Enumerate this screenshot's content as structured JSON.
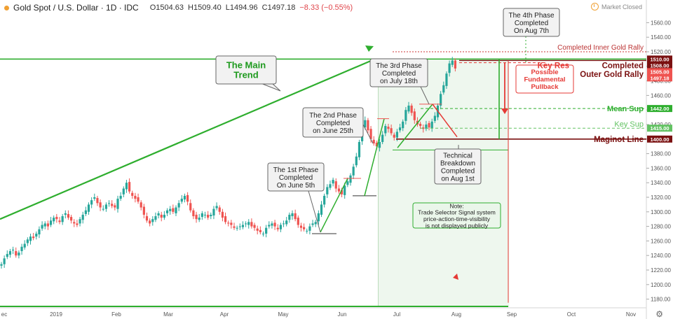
{
  "header": {
    "title": "Gold Spot / U.S. Dollar · 1D · IDC",
    "open": "O1504.63",
    "high": "H1509.40",
    "low": "L1494.96",
    "close": "C1497.18",
    "change": "−8.33 (−0.55%)",
    "market_status": "Market Closed"
  },
  "colors": {
    "up": "#26a69a",
    "down": "#ef5350",
    "trend": "#2eae2e",
    "resistance": "#e53935",
    "maginot": "#7a1010",
    "accent": "#f0a033"
  },
  "chart_data": {
    "type": "candlestick",
    "symbol": "XAUUSD",
    "ylim": [
      1170,
      1570
    ],
    "yticks": [
      1180,
      1200,
      1220,
      1240,
      1260,
      1280,
      1300,
      1320,
      1340,
      1360,
      1380,
      1400,
      1420,
      1440,
      1460,
      1480,
      1500,
      1520,
      1540,
      1560
    ],
    "xtick_labels": [
      "ec",
      "2019",
      "Feb",
      "Mar",
      "Apr",
      "May",
      "Jun",
      "Jul",
      "Aug",
      "Sep",
      "Oct",
      "Nov"
    ],
    "closes_approx": [
      1228,
      1236,
      1242,
      1246,
      1248,
      1240,
      1244,
      1252,
      1256,
      1262,
      1266,
      1264,
      1270,
      1276,
      1282,
      1284,
      1280,
      1288,
      1292,
      1290,
      1286,
      1294,
      1298,
      1292,
      1288,
      1284,
      1282,
      1290,
      1296,
      1302,
      1310,
      1316,
      1320,
      1312,
      1306,
      1304,
      1310,
      1312,
      1308,
      1306,
      1318,
      1322,
      1332,
      1340,
      1328,
      1322,
      1318,
      1314,
      1306,
      1296,
      1288,
      1284,
      1290,
      1294,
      1298,
      1292,
      1296,
      1302,
      1304,
      1300,
      1306,
      1312,
      1318,
      1322,
      1314,
      1302,
      1294,
      1290,
      1292,
      1298,
      1296,
      1292,
      1296,
      1304,
      1308,
      1300,
      1292,
      1286,
      1284,
      1282,
      1278,
      1278,
      1280,
      1282,
      1284,
      1286,
      1280,
      1278,
      1274,
      1272,
      1270,
      1278,
      1282,
      1284,
      1280,
      1276,
      1282,
      1284,
      1288,
      1296,
      1298,
      1290,
      1282,
      1278,
      1276,
      1274,
      1280,
      1284,
      1286,
      1298,
      1310,
      1322,
      1334,
      1338,
      1344,
      1332,
      1328,
      1324,
      1336,
      1342,
      1350,
      1362,
      1376,
      1396,
      1418,
      1426,
      1412,
      1400,
      1394,
      1390,
      1396,
      1406,
      1418,
      1414,
      1408,
      1402,
      1410,
      1416,
      1424,
      1440,
      1446,
      1436,
      1426,
      1420,
      1418,
      1414,
      1420,
      1416,
      1424,
      1432,
      1446,
      1462,
      1474,
      1490,
      1504,
      1508,
      1497
    ],
    "annotations": {
      "main_trend": "The Main\nTrend",
      "phase1": "The 1st Phase\nCompleted\nOn June 5th",
      "phase2": "The 2nd Phase\nCompleted\non June 25th",
      "phase3": "The 3rd Phase\nCompleted\non July 18th",
      "phase4": "The 4th Phase\nCompleted\nOn Aug 7th",
      "tech_breakdown": "Technical\nBreakdown\nCompleted\non Aug 1st",
      "note": "Note:\nTrade Selector Signal system\nprice-action-time-visibility\nis not displayed publicly",
      "pullback": "Possible\nFundamental\nPullback"
    },
    "levels": [
      {
        "name": "Completed Inner Gold Rally",
        "price": 1520,
        "color": "#cc3333"
      },
      {
        "name": "Completed\nOuter Gold Rally",
        "price": 1510,
        "color": "#7a1010"
      },
      {
        "name": "Key Res",
        "price": 1508,
        "color": "#e53935"
      },
      {
        "name": "Mean Sup",
        "price": 1442,
        "color": "#2eae2e"
      },
      {
        "name": "Key Sup",
        "price": 1415,
        "color": "#62c262"
      },
      {
        "name": "Maginot Line",
        "price": 1400,
        "color": "#7a1010"
      }
    ],
    "price_labels": [
      {
        "text": "1510.00",
        "price": 1510,
        "bg": "#7a1010"
      },
      {
        "text": "1508.00",
        "price": 1508,
        "bg": "#7a1010"
      },
      {
        "text": "1505.00",
        "price": 1505,
        "bg": "#ef5350"
      },
      {
        "text": "1497.18",
        "price": 1497.18,
        "bg": "#ef5350"
      },
      {
        "text": "1442.00",
        "price": 1442,
        "bg": "#2eae2e"
      },
      {
        "text": "1415.00",
        "price": 1415,
        "bg": "#62c262"
      },
      {
        "text": "1400.00",
        "price": 1400,
        "bg": "#7a1010"
      }
    ]
  }
}
